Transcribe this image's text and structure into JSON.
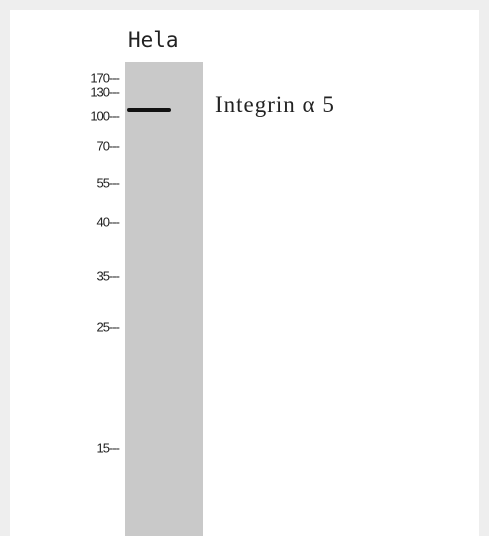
{
  "lanes": [
    "Hela"
  ],
  "markers": [
    "170---",
    "130---",
    "100---",
    "70---",
    "55---",
    "40---",
    "35---",
    "25---",
    "15---"
  ],
  "band_label": "Integrin α 5"
}
